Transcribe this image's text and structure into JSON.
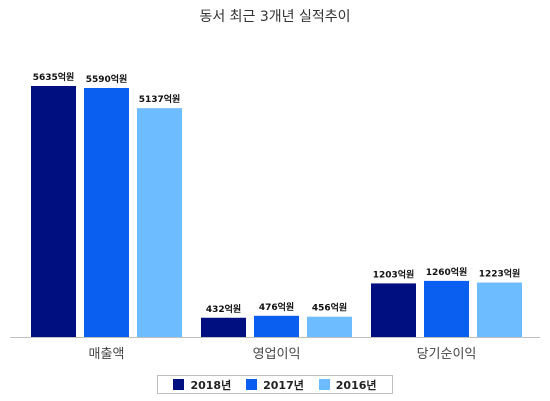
{
  "title": "동서 최근 3개년 실적추이",
  "chart_data": {
    "type": "bar",
    "title": "동서 최근 3개년 실적추이",
    "categories": [
      "매출액",
      "영업이익",
      "당기순이익"
    ],
    "series": [
      {
        "name": "2018년",
        "color": "#000f7f",
        "values": [
          5635,
          432,
          1203
        ],
        "labels": [
          "5635억원",
          "432억원",
          "1203억원"
        ]
      },
      {
        "name": "2017년",
        "color": "#0a5ff0",
        "values": [
          5590,
          476,
          1260
        ],
        "labels": [
          "5590억원",
          "476억원",
          "1260억원"
        ]
      },
      {
        "name": "2016년",
        "color": "#6cbcff",
        "values": [
          5137,
          456,
          1223
        ],
        "labels": [
          "5137억원",
          "456억원",
          "1223억원"
        ]
      }
    ],
    "legend_position": "bottom",
    "grid": false
  }
}
